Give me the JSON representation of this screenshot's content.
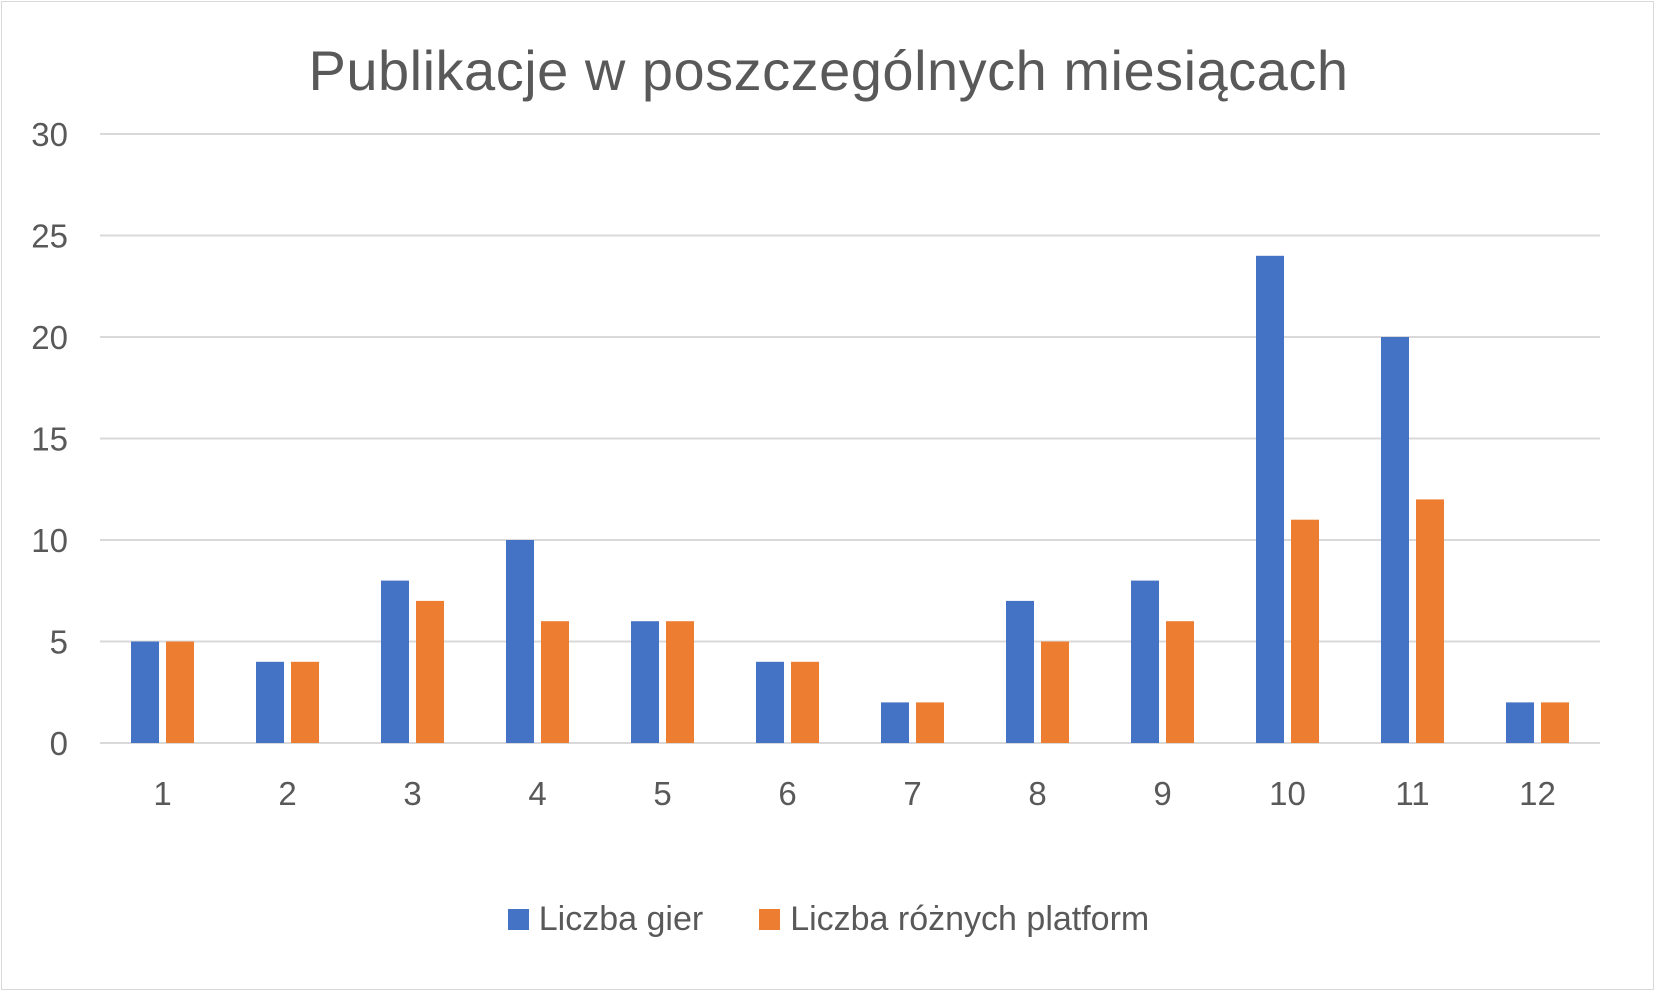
{
  "chart_data": {
    "type": "bar",
    "title": "Publikacje w poszczególnych miesiącach",
    "xlabel": "",
    "ylabel": "",
    "categories": [
      "1",
      "2",
      "3",
      "4",
      "5",
      "6",
      "7",
      "8",
      "9",
      "10",
      "11",
      "12"
    ],
    "series": [
      {
        "name": "Liczba gier",
        "color": "#4472c4",
        "values": [
          5,
          4,
          8,
          10,
          6,
          4,
          2,
          7,
          8,
          24,
          20,
          2
        ]
      },
      {
        "name": "Liczba różnych platform",
        "color": "#ed7d31",
        "values": [
          5,
          4,
          7,
          6,
          6,
          4,
          2,
          5,
          6,
          11,
          12,
          2
        ]
      }
    ],
    "ylim": [
      0,
      30
    ],
    "yticks": [
      0,
      5,
      10,
      15,
      20,
      25,
      30
    ],
    "grid": true,
    "gridColor": "#d9d9d9",
    "legend_position": "bottom"
  }
}
